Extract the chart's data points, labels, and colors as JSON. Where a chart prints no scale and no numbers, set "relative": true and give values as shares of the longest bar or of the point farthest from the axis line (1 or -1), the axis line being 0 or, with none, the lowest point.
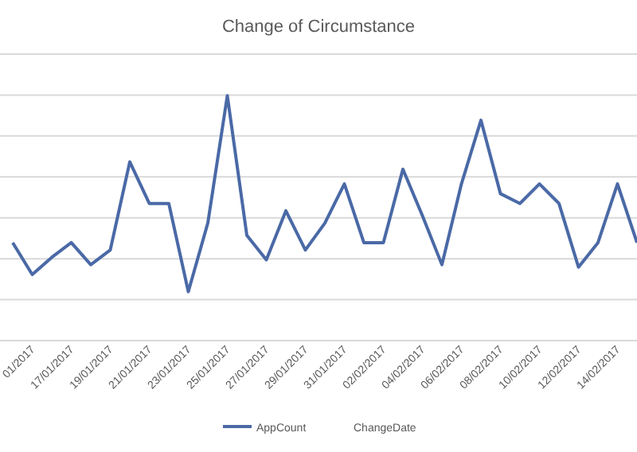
{
  "chart_data": {
    "type": "line",
    "title": "Change of Circumstance",
    "xlabel": "ChangeDate",
    "relative": true,
    "grid": true,
    "legend": "bottom",
    "marker": "none",
    "line_style": "solid",
    "categories": [
      null,
      "01/2017",
      null,
      "17/01/2017",
      null,
      "19/01/2017",
      null,
      "21/01/2017",
      null,
      "23/01/2017",
      null,
      "25/01/2017",
      null,
      "27/01/2017",
      null,
      "29/01/2017",
      null,
      "31/01/2017",
      null,
      "02/02/2017",
      null,
      "04/02/2017",
      null,
      "06/02/2017",
      null,
      "08/02/2017",
      null,
      "10/02/2017",
      null,
      "12/02/2017",
      null,
      "14/02/2017",
      null
    ],
    "series": [
      {
        "name": "AppCount",
        "color": "#4a69a6",
        "values": [
          0.4,
          0.27,
          0.34,
          0.4,
          0.31,
          0.37,
          0.73,
          0.56,
          0.56,
          0.2,
          0.48,
          1,
          0.43,
          0.33,
          0.53,
          0.37,
          0.48,
          0.64,
          0.4,
          0.4,
          0.7,
          0.51,
          0.31,
          0.64,
          0.9,
          0.6,
          0.56,
          0.64,
          0.56,
          0.3,
          0.4,
          0.64,
          0.4
        ]
      }
    ]
  }
}
